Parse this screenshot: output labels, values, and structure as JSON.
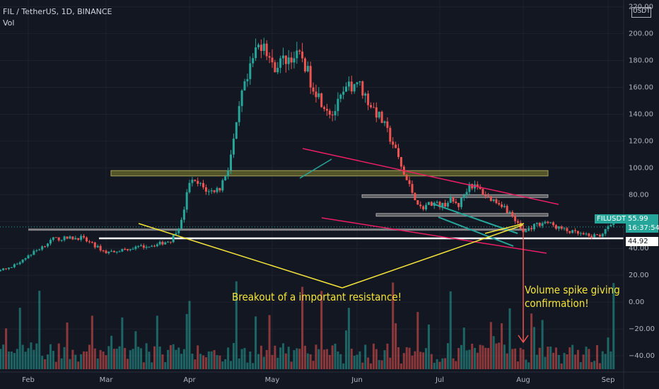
{
  "header": {
    "title": "FIL / TetherUS, 1D, BINANCE",
    "indicator": "Vol"
  },
  "price_axis": {
    "currency": "USDT"
  },
  "badges": {
    "symbol": "FILUSDT",
    "price": "55.99",
    "countdown": "16:37:54",
    "level": "44.92"
  },
  "annotations": {
    "breakout": "Breakout of a important resistance!",
    "volume_line1": "Volume spike giving",
    "volume_line2": "confirmation!"
  },
  "colors": {
    "background": "#131722",
    "bull": "#26a69a",
    "bear": "#ef5350",
    "annotation": "#f5e53a",
    "channel": "#e91e63",
    "support": "#ffffff",
    "resistance_zone": "#7a7a3a"
  },
  "chart_data": {
    "type": "candlestick",
    "symbol": "FIL / TetherUS",
    "interval": "1D",
    "exchange": "BINANCE",
    "y_ticks": [
      -40,
      -20,
      0,
      20,
      40,
      60,
      80,
      100,
      120,
      140,
      160,
      180,
      200,
      220
    ],
    "y_tick_labels": [
      "−40.00",
      "−20.00",
      "0.00",
      "20.00",
      "40.00",
      "60.00",
      "80.00",
      "100.00",
      "120.00",
      "140.00",
      "160.00",
      "180.00",
      "200.00",
      "220.00"
    ],
    "ylim": [
      -50,
      223
    ],
    "x_labels": [
      "Feb",
      "Mar",
      "Apr",
      "May",
      "Jun",
      "Jul",
      "Aug",
      "Sep"
    ],
    "xlim": [
      "2021-01-01",
      "2021-09-15"
    ],
    "current_price": 55.99,
    "levels": {
      "support_white": 47.5,
      "grey_line": 54,
      "resistance_zone": [
        94,
        98
      ],
      "level_80": 79,
      "level_65": 65
    },
    "close_anchors": [
      [
        "2021-01-01",
        22.5
      ],
      [
        "2021-01-15",
        22.5
      ],
      [
        "2021-01-25",
        25
      ],
      [
        "2021-02-05",
        40
      ],
      [
        "2021-02-10",
        47
      ],
      [
        "2021-02-20",
        48
      ],
      [
        "2021-03-01",
        37
      ],
      [
        "2021-03-10",
        40
      ],
      [
        "2021-03-20",
        43
      ],
      [
        "2021-03-25",
        46
      ],
      [
        "2021-03-29",
        60
      ],
      [
        "2021-04-01",
        90
      ],
      [
        "2021-04-05",
        87
      ],
      [
        "2021-04-08",
        82
      ],
      [
        "2021-04-12",
        85
      ],
      [
        "2021-04-15",
        100
      ],
      [
        "2021-04-18",
        130
      ],
      [
        "2021-04-20",
        155
      ],
      [
        "2021-04-22",
        165
      ],
      [
        "2021-04-25",
        188
      ],
      [
        "2021-04-28",
        195
      ],
      [
        "2021-05-01",
        175
      ],
      [
        "2021-05-05",
        180
      ],
      [
        "2021-05-08",
        183
      ],
      [
        "2021-05-12",
        182
      ],
      [
        "2021-05-15",
        165
      ],
      [
        "2021-05-19",
        150
      ],
      [
        "2021-05-23",
        140
      ],
      [
        "2021-05-28",
        158
      ],
      [
        "2021-06-01",
        165
      ],
      [
        "2021-06-05",
        150
      ],
      [
        "2021-06-10",
        135
      ],
      [
        "2021-06-14",
        118
      ],
      [
        "2021-06-18",
        95
      ],
      [
        "2021-06-21",
        82
      ],
      [
        "2021-06-24",
        70
      ],
      [
        "2021-06-28",
        74
      ],
      [
        "2021-07-02",
        72
      ],
      [
        "2021-07-05",
        76
      ],
      [
        "2021-07-08",
        72
      ],
      [
        "2021-07-12",
        88
      ],
      [
        "2021-07-15",
        85
      ],
      [
        "2021-07-19",
        78
      ],
      [
        "2021-07-24",
        73
      ],
      [
        "2021-07-28",
        64
      ],
      [
        "2021-08-01",
        52
      ],
      [
        "2021-08-05",
        57
      ],
      [
        "2021-08-09",
        60
      ],
      [
        "2021-08-13",
        56
      ],
      [
        "2021-08-17",
        53
      ],
      [
        "2021-08-21",
        51
      ],
      [
        "2021-08-25",
        49
      ],
      [
        "2021-08-29",
        50
      ],
      [
        "2021-09-01",
        55
      ],
      [
        "2021-09-03",
        58
      ]
    ],
    "volume_spikes": [
      "2021-02-05",
      "2021-04-01",
      "2021-04-18",
      "2021-05-12",
      "2021-05-19",
      "2021-06-14",
      "2021-07-05",
      "2021-09-03"
    ]
  }
}
